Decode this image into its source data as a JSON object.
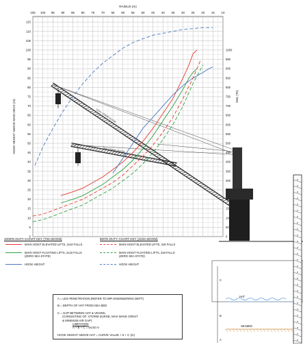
{
  "chart_data": {
    "type": "line",
    "xlabel": "RADIUS (m)",
    "ylabel": "HOOK HEIGHT ABOVE MAIN DECK (m)",
    "y2label": "SWL (Te)",
    "x_ticks": [
      105,
      100,
      95,
      90,
      85,
      80,
      75,
      70,
      65,
      60,
      55,
      50,
      45,
      40,
      35,
      30,
      25,
      20,
      15,
      10
    ],
    "xlim": [
      105,
      10
    ],
    "y_ticks": [
      0,
      5,
      10,
      15,
      20,
      25,
      30,
      35,
      40,
      45,
      50,
      55,
      60,
      65,
      70,
      75,
      80,
      85,
      90,
      95,
      100,
      105,
      110,
      115
    ],
    "ylim": [
      0,
      118
    ],
    "y2_ticks": [
      0,
      50,
      100,
      150,
      200,
      250,
      300,
      350,
      400,
      450,
      500,
      550,
      600,
      650,
      700,
      750,
      800,
      850,
      900,
      950,
      1000
    ],
    "grid": true,
    "series": [
      {
        "name": "MAIN HOIST ELEVATED LIFTS, 2x10 FALLS",
        "group": "70m",
        "color": "#e53b2f",
        "dash": "solid",
        "x": [
          91,
          85,
          80,
          75,
          70,
          65,
          60,
          55,
          50,
          45,
          40,
          35,
          30,
          27,
          25,
          23
        ],
        "y": [
          22,
          24,
          26,
          29,
          32,
          36,
          40,
          45,
          51,
          58,
          66,
          74,
          85,
          92,
          98,
          100
        ]
      },
      {
        "name": "MAIN HOIST FLOATING LIFTS, 2x10 FALLS (ZERO SEA STATE)",
        "group": "70m",
        "color": "#2ea043",
        "dash": "solid",
        "x": [
          91,
          85,
          80,
          75,
          70,
          65,
          60,
          55,
          50,
          45,
          40,
          35,
          30,
          27,
          25,
          23
        ],
        "y": [
          18,
          20,
          22,
          25,
          28,
          32,
          36,
          41,
          47,
          54,
          62,
          70,
          79,
          85,
          88,
          90
        ]
      },
      {
        "name": "HOOK HEIGHT",
        "group": "70m",
        "color": "#4a78c2",
        "dash": "solid",
        "x": [
          65,
          60,
          55,
          50,
          45,
          40,
          35,
          30,
          25,
          20,
          17,
          15
        ],
        "y": [
          34,
          42,
          50,
          58,
          64,
          70,
          76,
          81,
          85,
          88,
          90,
          91
        ]
      },
      {
        "name": "MAIN HOIST ELEVATED LIFTS, 2x8 FALLS",
        "group": "102m",
        "color": "#e53b2f",
        "dash": "dashed",
        "x": [
          105,
          100,
          95,
          90,
          85,
          80,
          75,
          70,
          65,
          60,
          55,
          50,
          45,
          40,
          35,
          30,
          25,
          23,
          21
        ],
        "y": [
          11,
          12,
          14,
          16,
          18,
          20,
          23,
          26,
          29,
          33,
          38,
          43,
          49,
          56,
          64,
          74,
          85,
          90,
          95
        ]
      },
      {
        "name": "MAIN HOIST FLOATING LIFTS, 2x8 FALLS (ZERO SEA STATE)",
        "group": "102m",
        "color": "#2ea043",
        "dash": "dashed",
        "x": [
          105,
          100,
          95,
          90,
          85,
          80,
          75,
          70,
          65,
          60,
          55,
          50,
          45,
          40,
          35,
          30,
          25,
          22,
          20
        ],
        "y": [
          8,
          9,
          11,
          13,
          15,
          17,
          20,
          23,
          26,
          30,
          34,
          39,
          45,
          52,
          60,
          70,
          82,
          88,
          92
        ]
      },
      {
        "name": "HOOK HEIGHT",
        "group": "102m",
        "color": "#4a78c2",
        "dash": "dashed",
        "x": [
          104,
          100,
          95,
          90,
          85,
          80,
          75,
          70,
          65,
          60,
          55,
          50,
          45,
          40,
          35,
          30,
          25,
          20,
          15
        ],
        "y": [
          38,
          48,
          58,
          67,
          75,
          82,
          88,
          93,
          97,
          101,
          104,
          106,
          108,
          109,
          110,
          111,
          111.5,
          112,
          112
        ]
      }
    ],
    "key_headers": [
      "1000Te DUTY CHART KEY (70m BOOM)",
      "800Te DUTY CHART KEY (102m BOOM)"
    ],
    "annotations": [
      "70m CRANE BOOM",
      "102m CRANE BOOM",
      "HAT",
      "SEABED",
      "A",
      "B",
      "C"
    ]
  },
  "key": {
    "rows": [
      {
        "left": "MAIN HOIST ELEVATED LIFTS, 2x10 FALLS",
        "right": "MAIN HOIST ELEVATED LIFTS, 2x8 FALLS",
        "color": "#e53b2f"
      },
      {
        "left": "MAIN HOIST FLOATING LIFTS, 2x10 FALLS\n(ZERO SEA STATE)",
        "right": "MAIN HOIST FLOATING LIFTS, 2x8 FALLS\n(ZERO SEA STATE)",
        "color": "#2ea043"
      },
      {
        "left": "HOOK HEIGHT",
        "right": "HOOK HEIGHT",
        "color": "#4a78c2"
      }
    ]
  },
  "notes": {
    "a": "A = LEG PENETRATION (REFER TO MPI ENGINEERING DEPT)",
    "b": "B = DEPTH OF HAT FROM SEA BED",
    "c": "C = GAP BETWEEN HAT & VESSEL\n      (CONSISTING OF: STORM SURGE, MAX WAVE CREST\n      & MINIMUM AIR GAP)",
    "limitation_title": "LIMITATION",
    "limitation": "A + B + C = 54,82 m",
    "formula": "HOOK HEIGHT ABOVE HAT = CURVE VALUE + 6 + C (m)"
  },
  "colors": {
    "grid": "#b9b9b9",
    "hull": "#6aa6e0",
    "crane": "#222222"
  }
}
